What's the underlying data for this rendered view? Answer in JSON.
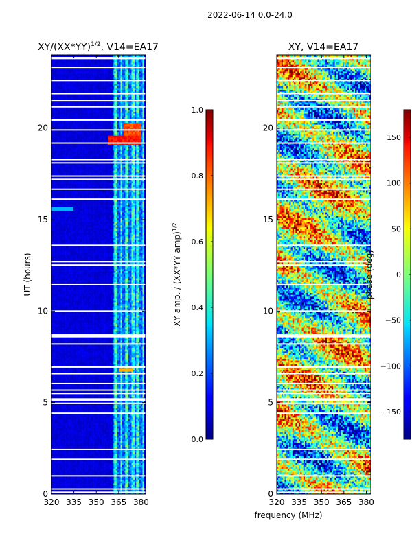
{
  "figure": {
    "suptitle": "2022-06-14 0.0-24.0",
    "shared_xlabel": "frequency (MHz)"
  },
  "colors": {
    "bg": "#ffffff",
    "axis": "#000000",
    "jet_low": "#00007f",
    "jet_high": "#7f0000",
    "gap_lines": "#ffffff"
  },
  "chart_data": [
    {
      "type": "heatmap",
      "title": "XY/(XX*YY)¹ᐟ², V14=EA17",
      "title_main": "XY/(XX*YY)",
      "title_sup": "1/2",
      "title_tail": ", V14=EA17",
      "xlabel": "",
      "ylabel": "UT (hours)",
      "xlim": [
        320,
        383
      ],
      "ylim": [
        0,
        24
      ],
      "x_ticks": [
        "320",
        "335",
        "350",
        "365",
        "380"
      ],
      "x_tick_values": [
        320,
        335,
        350,
        365,
        380
      ],
      "y_ticks": [
        "0",
        "5",
        "10",
        "15",
        "20"
      ],
      "y_tick_values": [
        0,
        5,
        10,
        15,
        20
      ],
      "colormap": "jet",
      "colorbar": {
        "label_main": "XY amp. / (XX*YY amp)",
        "label_sup": "1/2",
        "range": [
          0.0,
          1.0
        ],
        "ticks": [
          "0.0",
          "0.2",
          "0.4",
          "0.6",
          "0.8",
          "1.0"
        ],
        "tick_values": [
          0.0,
          0.2,
          0.4,
          0.6,
          0.8,
          1.0
        ]
      },
      "features": [
        {
          "desc": "low background",
          "value": 0.08
        },
        {
          "desc": "RFI channels",
          "freq_range": [
            361,
            382
          ],
          "value": 0.35
        },
        {
          "desc": "strong event",
          "time_range": [
            19.1,
            19.6
          ],
          "freq_range": [
            358,
            380
          ],
          "value": 0.85
        },
        {
          "desc": "secondary event",
          "time_range": [
            6.7,
            6.9
          ],
          "freq_range": [
            365,
            375
          ],
          "value": 0.7
        }
      ]
    },
    {
      "type": "heatmap",
      "title": "XY, V14=EA17",
      "xlabel": "frequency (MHz)",
      "ylabel": "",
      "xlim": [
        320,
        383
      ],
      "ylim": [
        0,
        24
      ],
      "x_ticks": [
        "320",
        "335",
        "350",
        "365",
        "380"
      ],
      "x_tick_values": [
        320,
        335,
        350,
        365,
        380
      ],
      "y_ticks": [
        "0",
        "5",
        "10",
        "15",
        "20"
      ],
      "y_tick_values": [
        0,
        5,
        10,
        15,
        20
      ],
      "colormap": "jet",
      "colorbar": {
        "label": "phase (deg)",
        "range": [
          -180,
          180
        ],
        "ticks": [
          "−150",
          "−100",
          "−50",
          "0",
          "50",
          "100",
          "150"
        ],
        "tick_values": [
          -150,
          -100,
          -50,
          0,
          50,
          100,
          150
        ]
      },
      "features": [
        {
          "desc": "random phase",
          "value_range": [
            -180,
            180
          ]
        }
      ]
    }
  ]
}
